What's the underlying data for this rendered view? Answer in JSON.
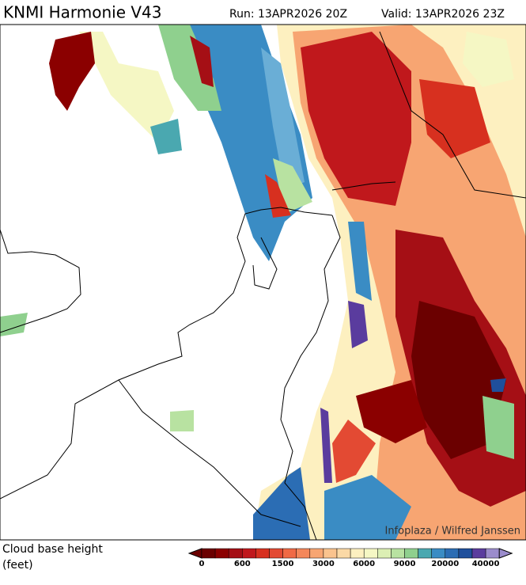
{
  "header": {
    "title": "KNMI Harmonie V43",
    "run": "Run: 13APR2026 20Z",
    "valid": "Valid: 13APR2026 23Z"
  },
  "watermark": "Infoplaza / Wilfred Janssen",
  "legend": {
    "title": "Cloud base height",
    "unit": "(feet)",
    "colors": [
      "#6b0000",
      "#8b0000",
      "#a50f15",
      "#c0181c",
      "#d7301f",
      "#e34a33",
      "#f06a45",
      "#f4875a",
      "#f7a572",
      "#fac38e",
      "#fbd9a6",
      "#fdf0c0",
      "#f5f7c4",
      "#dcefb4",
      "#b8e2a1",
      "#8fd08e",
      "#4aa8b0",
      "#3a8cc4",
      "#2b6db4",
      "#1f4f9c",
      "#5a3c9e",
      "#9b8ccc"
    ],
    "ticks": [
      0,
      600,
      1500,
      3000,
      6000,
      9000,
      20000,
      40000
    ]
  }
}
